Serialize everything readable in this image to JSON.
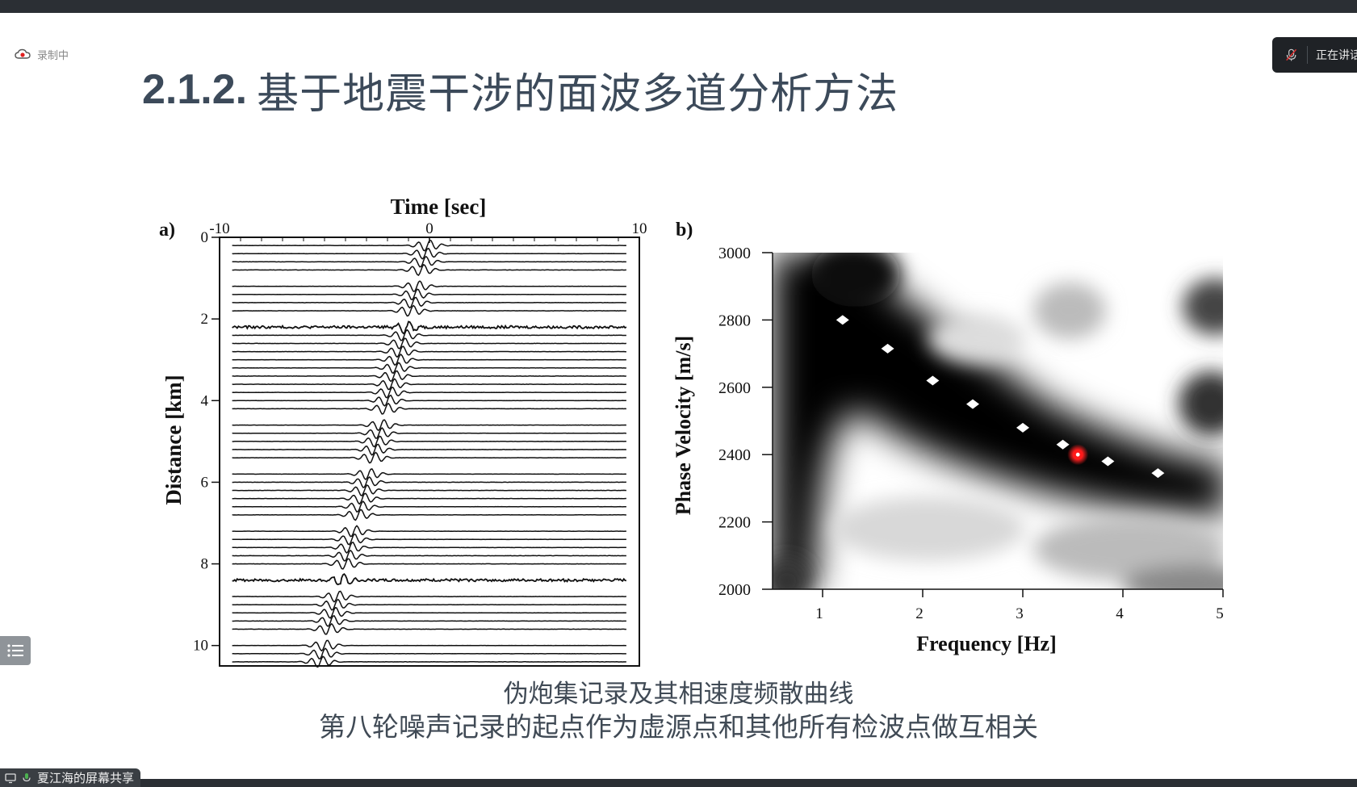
{
  "recording": {
    "label": "录制中"
  },
  "speaking": {
    "label": "正在讲话"
  },
  "slide": {
    "title_number": "2.1.2.",
    "title_text": "基于地震干涉的面波多道分析方法",
    "caption_line1": "伪炮集记录及其相速度频散曲线",
    "caption_line2": "第八轮噪声记录的起点作为虚源点和其他所有检波点做互相关"
  },
  "screen_share": {
    "label": "夏江海的屏幕共享"
  },
  "icons": {
    "recording": "cloud-record-icon",
    "mic": "mic-muted-icon",
    "menu": "list-menu-icon",
    "share": "screen-share-icon"
  },
  "colors": {
    "title": "#3c4a5a",
    "caption": "#404a55",
    "toolbar": "#2b2f34",
    "highlight": "#e01010"
  },
  "chart_data": [
    {
      "type": "line",
      "panel_label": "a)",
      "title": "Time [sec]",
      "xlabel": "",
      "ylabel": "Distance [km]",
      "xlim": [
        -10,
        10
      ],
      "ylim": [
        0,
        10.5
      ],
      "x_ticks": [
        "-10",
        "0",
        "10"
      ],
      "y_ticks": [
        "0",
        "2",
        "4",
        "6",
        "8",
        "10"
      ],
      "trace_distances_km": [
        0.2,
        0.4,
        0.6,
        0.8,
        1.2,
        1.4,
        1.6,
        1.8,
        2.2,
        2.4,
        2.6,
        2.8,
        3.0,
        3.2,
        3.4,
        3.6,
        3.8,
        4.0,
        4.2,
        4.6,
        4.8,
        5.0,
        5.2,
        5.4,
        5.8,
        6.0,
        6.2,
        6.4,
        6.6,
        6.8,
        7.2,
        7.4,
        7.6,
        7.8,
        8.0,
        8.4,
        8.8,
        9.0,
        9.2,
        9.4,
        9.6,
        10.0,
        10.2,
        10.4
      ],
      "noisy_traces_km": [
        2.2,
        8.4
      ],
      "arrival_time_sec": {
        "at_0km": 0,
        "at_10km": -5
      }
    },
    {
      "type": "heatmap",
      "panel_label": "b)",
      "title": "",
      "xlabel": "Frequency [Hz]",
      "ylabel": "Phase Velocity [m/s]",
      "xlim": [
        0.5,
        5
      ],
      "ylim": [
        2000,
        3000
      ],
      "x_ticks": [
        "1",
        "2",
        "3",
        "4",
        "5"
      ],
      "y_ticks": [
        "2000",
        "2200",
        "2400",
        "2600",
        "2800",
        "3000"
      ],
      "picked_dispersion": [
        {
          "f": 1.2,
          "v": 2800
        },
        {
          "f": 1.65,
          "v": 2715
        },
        {
          "f": 2.1,
          "v": 2620
        },
        {
          "f": 2.5,
          "v": 2550
        },
        {
          "f": 3.0,
          "v": 2480
        },
        {
          "f": 3.4,
          "v": 2430
        },
        {
          "f": 3.85,
          "v": 2380
        },
        {
          "f": 4.35,
          "v": 2345
        }
      ],
      "highlight_point": {
        "f": 3.55,
        "v": 2400
      }
    }
  ]
}
